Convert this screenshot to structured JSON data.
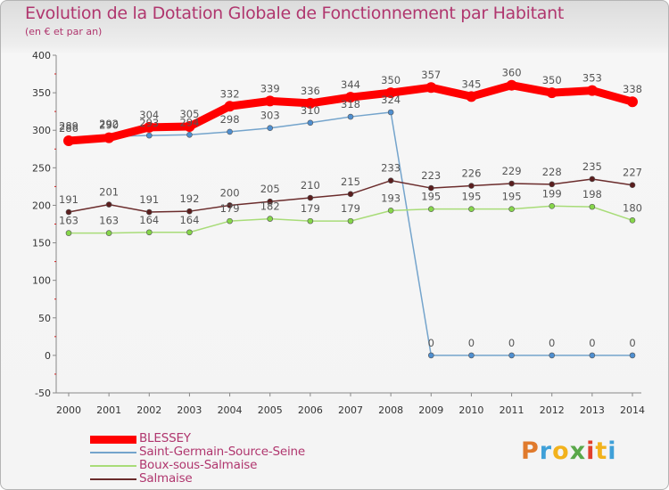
{
  "chart_data": {
    "type": "line",
    "title": "Evolution de la Dotation Globale de Fonctionnement par Habitant",
    "subtitle": "(en € et par an)",
    "xlabel": "",
    "ylabel": "",
    "categories": [
      "2000",
      "2001",
      "2002",
      "2003",
      "2004",
      "2005",
      "2006",
      "2007",
      "2008",
      "2009",
      "2010",
      "2011",
      "2012",
      "2013",
      "2014"
    ],
    "ylim": [
      -50,
      400
    ],
    "yticks": [
      -50,
      0,
      50,
      100,
      150,
      200,
      250,
      300,
      350,
      400
    ],
    "grid": false,
    "legend_position": "bottom-left",
    "series": [
      {
        "name": "BLESSEY",
        "color": "#ff0000",
        "values": [
          286,
          290,
          304,
          305,
          332,
          339,
          336,
          344,
          350,
          357,
          345,
          360,
          350,
          353,
          338
        ]
      },
      {
        "name": "Saint-Germain-Source-Seine",
        "color": "#74a4cc",
        "values": [
          289,
          292,
          293,
          294,
          298,
          303,
          310,
          318,
          324,
          0,
          0,
          0,
          0,
          0,
          0
        ]
      },
      {
        "name": "Boux-sous-Salmaise",
        "color": "#a8dc78",
        "values": [
          163,
          163,
          164,
          164,
          179,
          182,
          179,
          179,
          193,
          195,
          195,
          195,
          199,
          198,
          180
        ]
      },
      {
        "name": "Salmaise",
        "color": "#6b2c2c",
        "values": [
          191,
          201,
          191,
          192,
          200,
          205,
          210,
          215,
          233,
          223,
          226,
          229,
          228,
          235,
          227
        ]
      }
    ]
  },
  "logo": {
    "letters": [
      "P",
      "r",
      "o",
      "x",
      "i",
      "t",
      "i"
    ],
    "colors": [
      "#e07a2c",
      "#3fa0d8",
      "#f2b21c",
      "#5aa84a",
      "#e0402c",
      "#f2b21c",
      "#3fa0d8"
    ]
  }
}
